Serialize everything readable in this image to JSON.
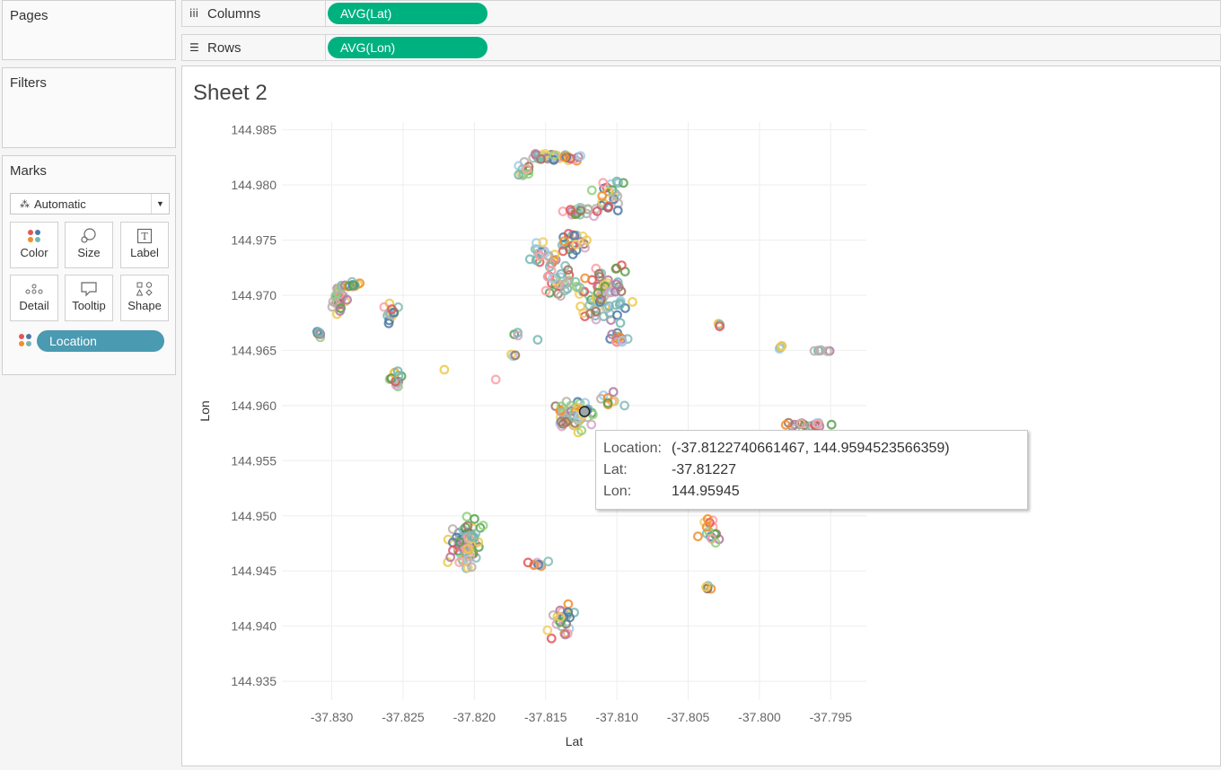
{
  "panels": {
    "pages": "Pages",
    "filters": "Filters",
    "marks": "Marks"
  },
  "shelves": {
    "columns_label": "Columns",
    "columns_pill": "AVG(Lat)",
    "rows_label": "Rows",
    "rows_pill": "AVG(Lon)"
  },
  "marks_card": {
    "mark_type": "Automatic",
    "buttons": [
      "Color",
      "Size",
      "Label",
      "Detail",
      "Tooltip",
      "Shape"
    ],
    "field_pill": "Location"
  },
  "sheet": {
    "title": "Sheet 2"
  },
  "chart_data": {
    "type": "scatter",
    "xlabel": "Lat",
    "ylabel": "Lon",
    "xlim": [
      -37.8335,
      -37.7925
    ],
    "ylim": [
      144.9333,
      144.9857
    ],
    "x_ticks": [
      "-37.830",
      "-37.825",
      "-37.820",
      "-37.815",
      "-37.810",
      "-37.805",
      "-37.800",
      "-37.795"
    ],
    "y_ticks": [
      "144.985",
      "144.980",
      "144.975",
      "144.970",
      "144.965",
      "144.960",
      "144.955",
      "144.950",
      "144.945",
      "144.940",
      "144.935"
    ],
    "grid": true,
    "marker": "open-circle",
    "color_by": "Location",
    "clusters": [
      {
        "x": -37.8145,
        "y": 144.9825,
        "sx": 0.0015,
        "sy": 0.0003,
        "n": 40
      },
      {
        "x": -37.8165,
        "y": 144.9812,
        "sx": 0.0005,
        "sy": 0.0006,
        "n": 12
      },
      {
        "x": -37.8105,
        "y": 144.979,
        "sx": 0.0009,
        "sy": 0.0012,
        "n": 24
      },
      {
        "x": -37.8125,
        "y": 144.9775,
        "sx": 0.001,
        "sy": 0.0004,
        "n": 20
      },
      {
        "x": -37.813,
        "y": 144.9748,
        "sx": 0.001,
        "sy": 0.0008,
        "n": 22
      },
      {
        "x": -37.815,
        "y": 144.9735,
        "sx": 0.0008,
        "sy": 0.001,
        "n": 22
      },
      {
        "x": -37.811,
        "y": 144.97,
        "sx": 0.0016,
        "sy": 0.002,
        "n": 70
      },
      {
        "x": -37.814,
        "y": 144.971,
        "sx": 0.0012,
        "sy": 0.0012,
        "n": 30
      },
      {
        "x": -37.81,
        "y": 144.966,
        "sx": 0.0006,
        "sy": 0.0005,
        "n": 14
      },
      {
        "x": -37.8295,
        "y": 144.9695,
        "sx": 0.0005,
        "sy": 0.0012,
        "n": 28
      },
      {
        "x": -37.8285,
        "y": 144.971,
        "sx": 0.0007,
        "sy": 0.0002,
        "n": 12
      },
      {
        "x": -37.831,
        "y": 144.9665,
        "sx": 0.0002,
        "sy": 0.0003,
        "n": 6
      },
      {
        "x": -37.8258,
        "y": 144.9685,
        "sx": 0.0005,
        "sy": 0.001,
        "n": 14
      },
      {
        "x": -37.8255,
        "y": 144.9625,
        "sx": 0.0004,
        "sy": 0.0007,
        "n": 14
      },
      {
        "x": -37.813,
        "y": 144.959,
        "sx": 0.0012,
        "sy": 0.0012,
        "n": 50
      },
      {
        "x": -37.8105,
        "y": 144.9605,
        "sx": 0.0008,
        "sy": 0.0005,
        "n": 10
      },
      {
        "x": -37.8205,
        "y": 144.9475,
        "sx": 0.001,
        "sy": 0.002,
        "n": 70
      },
      {
        "x": -37.8155,
        "y": 144.9457,
        "sx": 0.0006,
        "sy": 0.0002,
        "n": 8
      },
      {
        "x": -37.814,
        "y": 144.9405,
        "sx": 0.0008,
        "sy": 0.0015,
        "n": 26
      },
      {
        "x": -37.8035,
        "y": 144.9485,
        "sx": 0.0008,
        "sy": 0.0012,
        "n": 16
      },
      {
        "x": -37.8038,
        "y": 144.9435,
        "sx": 0.0004,
        "sy": 0.0004,
        "n": 5
      },
      {
        "x": -37.8028,
        "y": 144.9673,
        "sx": 0.0001,
        "sy": 0.0003,
        "n": 4
      },
      {
        "x": -37.7985,
        "y": 144.9653,
        "sx": 0.0001,
        "sy": 0.0003,
        "n": 5
      },
      {
        "x": -37.7955,
        "y": 144.965,
        "sx": 0.0006,
        "sy": 0.0001,
        "n": 8
      },
      {
        "x": -37.7965,
        "y": 144.9582,
        "sx": 0.0014,
        "sy": 0.0003,
        "n": 22
      },
      {
        "x": -37.822,
        "y": 144.9632,
        "sx": 0.0001,
        "sy": 0.0001,
        "n": 1
      },
      {
        "x": -37.8185,
        "y": 144.9624,
        "sx": 0.0001,
        "sy": 0.0001,
        "n": 1
      },
      {
        "x": -37.8155,
        "y": 144.966,
        "sx": 0.0001,
        "sy": 0.0001,
        "n": 1
      },
      {
        "x": -37.817,
        "y": 144.9663,
        "sx": 0.0003,
        "sy": 0.0003,
        "n": 3
      },
      {
        "x": -37.8175,
        "y": 144.9647,
        "sx": 0.0004,
        "sy": 0.0002,
        "n": 3
      }
    ],
    "highlight": {
      "x": -37.81227,
      "y": 144.95945
    }
  },
  "tooltip": {
    "location_key": "Location:",
    "location_value": "(-37.8122740661467, 144.9594523566359)",
    "lat_key": "Lat:",
    "lat_value": "-37.81227",
    "lon_key": "Lon:",
    "lon_value": "144.95945"
  },
  "palette": [
    "#4e79a7",
    "#f28e2b",
    "#e15759",
    "#76b7b2",
    "#59a14f",
    "#edc948",
    "#b07aa1",
    "#ff9da7",
    "#9c755f",
    "#bab0ac",
    "#8cd17d",
    "#d4a6c8",
    "#86bcb6",
    "#f1ce63",
    "#a0cbe8"
  ]
}
